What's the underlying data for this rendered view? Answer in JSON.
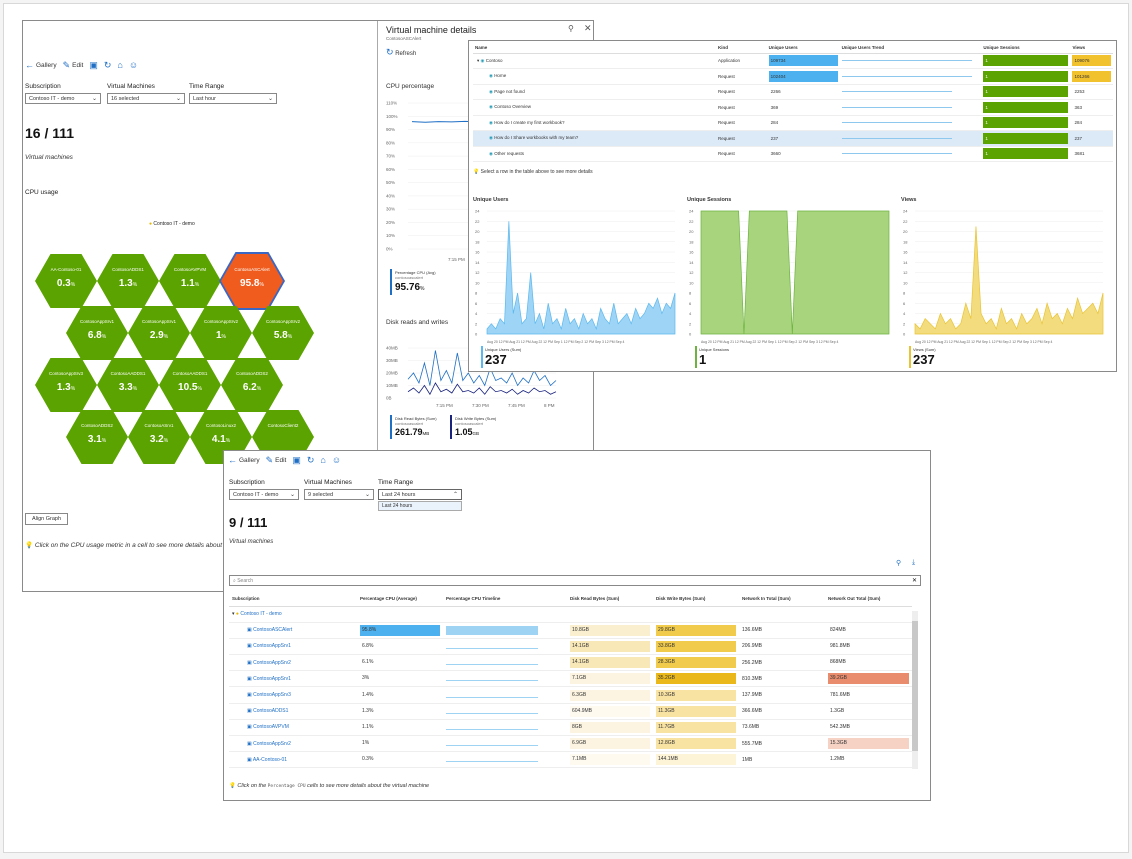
{
  "toolbar": {
    "gallery": "Gallery",
    "edit": "Edit"
  },
  "panelA": {
    "filters": {
      "subscription_label": "Subscription",
      "subscription_value": "Contoso IT - demo",
      "vms_label": "Virtual Machines",
      "vms_value": "16 selected",
      "time_label": "Time Range",
      "time_value": "Last hour"
    },
    "count": "16 / 111",
    "count_caption": "Virtual machines",
    "section": "CPU usage",
    "legend": "Contoso IT - demo",
    "hexes": [
      {
        "name": "AA-Contoso-01",
        "value": "0.3",
        "unit": "%",
        "highlight": false
      },
      {
        "name": "ContosoADDS1",
        "value": "1.3",
        "unit": "%",
        "highlight": false
      },
      {
        "name": "ContosoAVPVM",
        "value": "1.1",
        "unit": "%",
        "highlight": false
      },
      {
        "name": "ContosoASCAlert",
        "value": "95.8",
        "unit": "%",
        "highlight": true
      },
      {
        "name": "ContosoAppSrv1",
        "value": "6.8",
        "unit": "%",
        "highlight": false
      },
      {
        "name": "ContosoAppSrv1",
        "value": "2.9",
        "unit": "%",
        "highlight": false
      },
      {
        "name": "ContosoAppSrv2",
        "value": "1",
        "unit": "%",
        "highlight": false
      },
      {
        "name": "ContosoAppSrv2",
        "value": "5.8",
        "unit": "%",
        "highlight": false
      },
      {
        "name": "ContosoAppSrv3",
        "value": "1.3",
        "unit": "%",
        "highlight": false
      },
      {
        "name": "ContosoAADDS1",
        "value": "3.3",
        "unit": "%",
        "highlight": false
      },
      {
        "name": "ContosoAADDS1",
        "value": "10.5",
        "unit": "%",
        "highlight": false
      },
      {
        "name": "ContosoADDS2",
        "value": "6.2",
        "unit": "%",
        "highlight": false
      },
      {
        "name": "ContosoADDS2",
        "value": "3.1",
        "unit": "%",
        "highlight": false
      },
      {
        "name": "ContosoASrv1",
        "value": "3.2",
        "unit": "%",
        "highlight": false
      },
      {
        "name": "ContosoLinux2",
        "value": "4.1",
        "unit": "%",
        "highlight": false
      },
      {
        "name": "ContosoClient2",
        "value": "",
        "unit": "",
        "highlight": false
      }
    ],
    "align_button": "Align Graph",
    "tip": "Click on the CPU usage metric in a cell to see more details about"
  },
  "vmDetails": {
    "title": "Virtual machine details",
    "subtitle": "ContosoASCAlert",
    "refresh": "Refresh",
    "cpu_title": "CPU percentage",
    "cpu_yticks": [
      "110%",
      "100%",
      "90%",
      "80%",
      "70%",
      "60%",
      "50%",
      "40%",
      "30%",
      "20%",
      "10%",
      "0%"
    ],
    "cpu_xtick": "7:15 PM",
    "cpu_series": [
      96,
      95.5,
      96,
      95.8,
      96.2,
      95.9,
      96,
      96.1,
      95.8,
      95.9
    ],
    "cpu_stat_label": "Percentage CPU (Avg)",
    "cpu_stat_sub": "contosoascalert",
    "cpu_stat_value": "95.76",
    "cpu_stat_unit": "%",
    "disk_title": "Disk reads and writes",
    "disk_yticks": [
      "40MB",
      "30MB",
      "20MB",
      "10MB",
      "0B"
    ],
    "disk_xticks": [
      "7:15 PM",
      "7:30 PM",
      "7:45 PM",
      "8 PM"
    ],
    "disk_read": [
      15,
      20,
      12,
      28,
      10,
      38,
      14,
      22,
      12,
      36,
      14,
      20,
      12,
      18,
      10,
      24,
      14,
      16,
      12,
      20,
      10,
      16,
      12,
      22,
      14,
      18,
      10,
      14
    ],
    "disk_write": [
      5,
      8,
      4,
      10,
      3,
      12,
      5,
      7,
      4,
      11,
      5,
      6,
      4,
      8,
      3,
      9,
      5,
      6,
      4,
      7,
      3,
      6,
      4,
      8,
      5,
      6,
      3,
      5
    ],
    "read_label": "Disk Read Bytes (Sum)",
    "read_sub": "contosoascalert",
    "read_value": "261.79",
    "read_unit": "MB",
    "write_label": "Disk Write Bytes (Sum)",
    "write_sub": "contosoascalert",
    "write_value": "1.05",
    "write_unit": "GB"
  },
  "appPanel": {
    "headers": [
      "Name",
      "Kind",
      "Unique Users",
      "Unique Users Trend",
      "Unique Sessions",
      "Views"
    ],
    "rows": [
      {
        "name": "Contoso",
        "kind": "Application",
        "users": "109734",
        "sessions": "1",
        "views": "109076",
        "expander": true
      },
      {
        "name": "Home",
        "kind": "Request",
        "users": "102404",
        "sessions": "1",
        "views": "101266"
      },
      {
        "name": "Page not found",
        "kind": "Request",
        "users": "2266",
        "sessions": "1",
        "views": "2253"
      },
      {
        "name": "Contoso Overview",
        "kind": "Request",
        "users": "369",
        "sessions": "1",
        "views": "363"
      },
      {
        "name": "How do I create my first workbook?",
        "kind": "Request",
        "users": "284",
        "sessions": "1",
        "views": "284"
      },
      {
        "name": "How do I Share workbooks with my team?",
        "kind": "Request",
        "users": "237",
        "sessions": "1",
        "views": "237"
      },
      {
        "name": "Other requests",
        "kind": "Request",
        "users": "3660",
        "sessions": "1",
        "views": "3681"
      }
    ],
    "tip": "Select a row in the table above to see more details",
    "charts": [
      {
        "title": "Unique Users",
        "color": "#5cb8ee",
        "fill": "#9ed4f5",
        "yticks": [
          "24",
          "22",
          "20",
          "18",
          "16",
          "14",
          "12",
          "10",
          "8",
          "6",
          "4",
          "2",
          "0"
        ],
        "values": [
          1,
          2,
          1,
          3,
          2,
          22,
          4,
          8,
          2,
          3,
          12,
          2,
          4,
          1,
          6,
          2,
          3,
          1,
          5,
          2,
          3,
          1,
          4,
          2,
          3,
          1,
          5,
          3,
          2,
          6,
          2,
          3,
          4,
          2,
          5,
          3,
          4,
          6,
          5,
          7,
          4,
          6,
          5,
          8
        ],
        "xticks": "Aug 20 12 PM  Aug 21 12 PM  Aug 22 12 PM  Sep 1 12 PM  Sep 2 12 PM  Sep 3 12 PM  Sep 4",
        "stat_label": "Unique Users (Sum)",
        "stat_value": "237"
      },
      {
        "title": "Unique Sessions",
        "color": "#6db33f",
        "fill": "#a8d47e",
        "yticks": [
          "24",
          "22",
          "20",
          "18",
          "16",
          "14",
          "12",
          "10",
          "8",
          "6",
          "4",
          "2",
          "0"
        ],
        "values": [
          24,
          24,
          24,
          24,
          24,
          24,
          24,
          24,
          0,
          24,
          24,
          24,
          24,
          24,
          24,
          24,
          24,
          0,
          24,
          24,
          24,
          24,
          24,
          24,
          24,
          24,
          24,
          24,
          24,
          24,
          24,
          24,
          24,
          24,
          24,
          24
        ],
        "xticks": "Aug 20 12 PM  Aug 21 12 PM  Aug 22 12 PM  Sep 1 12 PM  Sep 2 12 PM  Sep 3 12 PM  Sep 4",
        "stat_label": "Unique Sessions",
        "stat_value": "1"
      },
      {
        "title": "Views",
        "color": "#e8c435",
        "fill": "#f3dc7e",
        "yticks": [
          "24",
          "22",
          "20",
          "18",
          "16",
          "14",
          "12",
          "10",
          "8",
          "6",
          "4",
          "2",
          "0"
        ],
        "values": [
          2,
          1,
          3,
          2,
          1,
          4,
          2,
          3,
          1,
          2,
          6,
          3,
          21,
          4,
          2,
          3,
          1,
          5,
          2,
          3,
          1,
          4,
          2,
          3,
          5,
          2,
          6,
          3,
          4,
          2,
          5,
          3,
          7,
          4,
          5,
          6,
          4,
          8
        ],
        "xticks": "Aug 20 12 PM  Aug 21 12 PM  Aug 22 12 PM  Sep 1 12 PM  Sep 2 12 PM  Sep 3 12 PM  Sep 4",
        "stat_label": "Views (Sum)",
        "stat_value": "237"
      }
    ]
  },
  "panelC": {
    "filters": {
      "subscription_label": "Subscription",
      "subscription_value": "Contoso IT - demo",
      "vms_label": "Virtual Machines",
      "vms_value": "9 selected",
      "time_label": "Time Range",
      "time_value": "Last 24 hours",
      "dropdown_option": "Last 24 hours"
    },
    "count": "9 / 111",
    "count_caption": "Virtual machines",
    "search_placeholder": "Search",
    "headers": [
      "Subscription",
      "Percentage CPU (Average)",
      "Percentage CPU Timeline",
      "Disk Read Bytes (Sum)",
      "Disk Write Bytes (Sum)",
      "Network In Total (Sum)",
      "Network Out Total (Sum)"
    ],
    "group": "Contoso IT - demo",
    "rows": [
      {
        "name": "ContosoASCAlert",
        "cpu": "95.8%",
        "cpu_pct": 95.8,
        "read": "10.8GB",
        "write": "29.8GB",
        "net_in": "136.6MB",
        "net_out": "824MB"
      },
      {
        "name": "ContosoAppSrv1",
        "cpu": "6.8%",
        "cpu_pct": 6.8,
        "read": "14.1GB",
        "write": "33.8GB",
        "net_in": "206.9MB",
        "net_out": "981.8MB"
      },
      {
        "name": "ContosoAppSrv2",
        "cpu": "6.1%",
        "cpu_pct": 6.1,
        "read": "14.1GB",
        "write": "28.3GB",
        "net_in": "256.2MB",
        "net_out": "868MB"
      },
      {
        "name": "ContosoAppSrv1",
        "cpu": "3%",
        "cpu_pct": 3,
        "read": "7.1GB",
        "write": "35.2GB",
        "net_in": "810.3MB",
        "net_out": "39.2GB"
      },
      {
        "name": "ContosoAppSrv3",
        "cpu": "1.4%",
        "cpu_pct": 1.4,
        "read": "6.3GB",
        "write": "10.3GB",
        "net_in": "137.9MB",
        "net_out": "781.6MB"
      },
      {
        "name": "ContosoADDS1",
        "cpu": "1.3%",
        "cpu_pct": 1.3,
        "read": "604.9MB",
        "write": "11.3GB",
        "net_in": "366.6MB",
        "net_out": "1.3GB"
      },
      {
        "name": "ContosoAVPVM",
        "cpu": "1.1%",
        "cpu_pct": 1.1,
        "read": "8GB",
        "write": "11.7GB",
        "net_in": "73.6MB",
        "net_out": "542.3MB"
      },
      {
        "name": "ContosoAppSrv2",
        "cpu": "1%",
        "cpu_pct": 1,
        "read": "6.9GB",
        "write": "12.8GB",
        "net_in": "555.7MB",
        "net_out": "15.3GB"
      },
      {
        "name": "AA-Contoso-01",
        "cpu": "0.3%",
        "cpu_pct": 0.3,
        "read": "7.1MB",
        "write": "144.1MB",
        "net_in": "1MB",
        "net_out": "1.2MB"
      }
    ],
    "tip_prefix": "Click on the",
    "tip_code": "Percentage CPU",
    "tip_suffix": "cells to see more details about the virtual machine"
  }
}
